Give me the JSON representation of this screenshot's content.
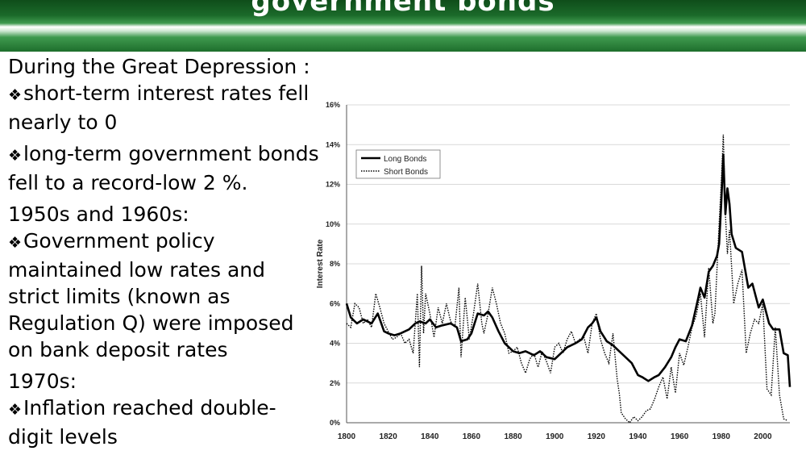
{
  "slide": {
    "title": "government bonds",
    "blocks": [
      {
        "type": "heading",
        "text": "During the Great Depression :"
      },
      {
        "type": "bullet",
        "text": "short-term interest rates fell nearly to 0"
      },
      {
        "type": "bullet",
        "text": "long-term government bonds fell to a record-low 2 %."
      },
      {
        "type": "heading",
        "text": "1950s and 1960s:"
      },
      {
        "type": "bullet",
        "text": "Government policy maintained low rates and strict limits (known as Regulation Q) were imposed on bank deposit rates"
      },
      {
        "type": "heading",
        "text": "1970s:"
      },
      {
        "type": "bullet",
        "text": "Inflation reached double-digit levels"
      }
    ]
  },
  "colors": {
    "banner_green": "#1b6a2a",
    "line": "#000000"
  },
  "chart_data": {
    "type": "line",
    "ylabel": "Interest Rate",
    "xlim": [
      1800,
      2013
    ],
    "ylim": [
      0,
      16
    ],
    "xticks": [
      "1800",
      "1820",
      "1840",
      "1860",
      "1880",
      "1900",
      "1920",
      "1940",
      "1960",
      "1980",
      "2000"
    ],
    "yticks": [
      "0%",
      "2%",
      "4%",
      "6%",
      "8%",
      "10%",
      "12%",
      "14%",
      "16%"
    ],
    "grid": true,
    "legend": "top-left",
    "series": [
      {
        "name": "Long Bonds",
        "style": "solid",
        "x": [
          1800,
          1802,
          1805,
          1808,
          1812,
          1815,
          1818,
          1820,
          1823,
          1826,
          1830,
          1833,
          1835,
          1838,
          1840,
          1843,
          1846,
          1850,
          1853,
          1855,
          1858,
          1860,
          1863,
          1866,
          1868,
          1870,
          1873,
          1876,
          1878,
          1880,
          1883,
          1886,
          1890,
          1893,
          1896,
          1900,
          1903,
          1906,
          1910,
          1913,
          1916,
          1918,
          1920,
          1922,
          1925,
          1928,
          1931,
          1934,
          1937,
          1940,
          1942,
          1945,
          1948,
          1950,
          1953,
          1956,
          1958,
          1960,
          1963,
          1966,
          1969,
          1970,
          1972,
          1974,
          1976,
          1978,
          1979,
          1980,
          1981,
          1982,
          1983,
          1984,
          1985,
          1987,
          1990,
          1993,
          1995,
          1998,
          2000,
          2003,
          2005,
          2008,
          2010,
          2012,
          2013
        ],
        "y": [
          6.0,
          5.3,
          5.0,
          5.2,
          5.0,
          5.5,
          4.6,
          4.5,
          4.4,
          4.5,
          4.7,
          5.0,
          5.1,
          5.0,
          5.2,
          4.8,
          4.9,
          5.0,
          4.8,
          4.1,
          4.2,
          4.5,
          5.5,
          5.4,
          5.6,
          5.3,
          4.6,
          4.0,
          3.8,
          3.6,
          3.5,
          3.6,
          3.4,
          3.6,
          3.3,
          3.2,
          3.5,
          3.8,
          4.0,
          4.2,
          4.8,
          5.0,
          5.3,
          4.6,
          4.1,
          3.9,
          3.6,
          3.3,
          3.0,
          2.4,
          2.3,
          2.1,
          2.3,
          2.4,
          2.8,
          3.3,
          3.8,
          4.2,
          4.1,
          4.9,
          6.3,
          6.8,
          6.3,
          7.6,
          7.9,
          8.4,
          9.0,
          11.0,
          13.5,
          10.5,
          11.8,
          11.0,
          9.5,
          8.8,
          8.6,
          6.8,
          7.0,
          5.8,
          6.2,
          5.0,
          4.7,
          4.7,
          3.5,
          3.4,
          1.8
        ]
      },
      {
        "name": "Short Bonds",
        "style": "dotted",
        "x": [
          1800,
          1802,
          1804,
          1806,
          1808,
          1810,
          1812,
          1814,
          1816,
          1818,
          1820,
          1822,
          1824,
          1826,
          1828,
          1830,
          1832,
          1834,
          1835,
          1836,
          1837,
          1838,
          1840,
          1842,
          1844,
          1846,
          1848,
          1850,
          1852,
          1854,
          1855,
          1857,
          1859,
          1861,
          1863,
          1865,
          1866,
          1868,
          1870,
          1872,
          1874,
          1876,
          1878,
          1880,
          1882,
          1884,
          1886,
          1888,
          1890,
          1892,
          1894,
          1896,
          1898,
          1900,
          1902,
          1904,
          1906,
          1908,
          1910,
          1912,
          1914,
          1916,
          1918,
          1920,
          1922,
          1924,
          1926,
          1928,
          1930,
          1931,
          1932,
          1934,
          1936,
          1938,
          1940,
          1942,
          1944,
          1946,
          1948,
          1950,
          1952,
          1954,
          1956,
          1958,
          1960,
          1962,
          1964,
          1966,
          1968,
          1970,
          1972,
          1974,
          1976,
          1977,
          1979,
          1980,
          1981,
          1982,
          1983,
          1984,
          1986,
          1988,
          1990,
          1992,
          1994,
          1996,
          1998,
          2000,
          2002,
          2004,
          2006,
          2008,
          2010,
          2012
        ],
        "y": [
          5.0,
          4.8,
          6.0,
          5.8,
          5.0,
          5.2,
          4.8,
          6.5,
          5.8,
          5.0,
          4.6,
          4.2,
          4.3,
          4.5,
          4.0,
          4.2,
          3.5,
          6.5,
          2.8,
          7.9,
          4.5,
          6.5,
          5.5,
          4.3,
          5.8,
          5.0,
          6.0,
          5.1,
          4.8,
          6.8,
          3.3,
          6.3,
          4.2,
          5.5,
          7.0,
          5.0,
          4.5,
          5.5,
          6.8,
          6.0,
          5.0,
          4.5,
          3.5,
          3.6,
          3.8,
          3.0,
          2.5,
          3.2,
          3.5,
          2.8,
          3.6,
          3.1,
          2.5,
          3.8,
          4.0,
          3.5,
          4.2,
          4.6,
          4.0,
          4.2,
          4.3,
          3.5,
          5.0,
          5.5,
          4.2,
          3.5,
          3.0,
          4.5,
          2.2,
          1.5,
          0.5,
          0.2,
          0.0,
          0.3,
          0.1,
          0.3,
          0.6,
          0.7,
          1.2,
          1.8,
          2.3,
          1.2,
          2.8,
          1.5,
          3.5,
          2.9,
          3.8,
          4.8,
          5.4,
          6.5,
          4.3,
          7.8,
          5.0,
          5.5,
          10.0,
          12.0,
          14.5,
          10.5,
          8.5,
          9.7,
          6.0,
          7.0,
          7.7,
          3.5,
          4.5,
          5.2,
          5.0,
          6.0,
          1.7,
          1.4,
          4.8,
          1.4,
          0.2,
          0.1
        ]
      }
    ]
  }
}
